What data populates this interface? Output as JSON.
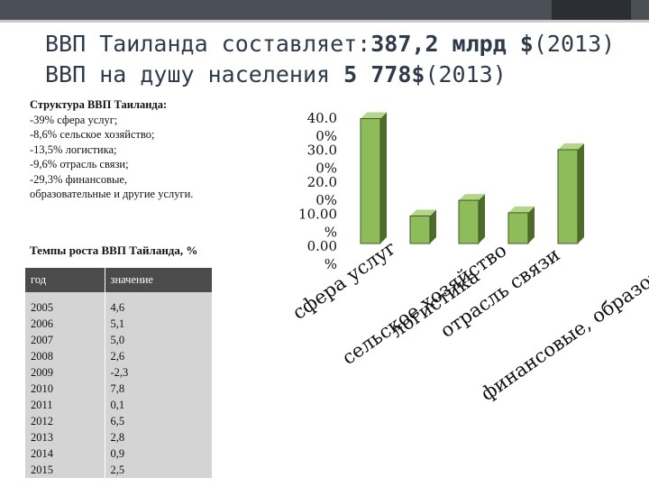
{
  "slide": {
    "title_line1_prefix": "ВВП Таиланда составляет:",
    "title_line1_value": "387,2 млрд $",
    "title_line1_suffix": "(2013)",
    "title_line2_prefix": "ВВП на душу населения ",
    "title_line2_value": "5 778$",
    "title_line2_suffix": "(2013)"
  },
  "structure": {
    "title": "Структура ВВП Таиланда:",
    "lines": [
      "-39% сфера услуг;",
      "-8,6% сельское хозяйство;",
      "-13,5% логистика;",
      "-9,6% отрасль связи;",
      "-29,3% финансовые,",
      "образовательные и другие услуги."
    ]
  },
  "growth": {
    "title": "Темпы роста ВВП Тайланда, %",
    "headers": [
      "год",
      "значение"
    ],
    "rows": [
      [
        "2005",
        "4,6"
      ],
      [
        "2006",
        "5,1"
      ],
      [
        "2007",
        "5,0"
      ],
      [
        "2008",
        "2,6"
      ],
      [
        "2009",
        "-2,3"
      ],
      [
        "2010",
        "7,8"
      ],
      [
        "2011",
        "0,1"
      ],
      [
        "2012",
        "6,5"
      ],
      [
        "2013",
        "2,8"
      ],
      [
        "2014",
        "0,9"
      ],
      [
        "2015",
        "2,5"
      ]
    ]
  },
  "chart_data": {
    "type": "bar",
    "categories": [
      "сфера услуг",
      "сельское хозяйство",
      "логистика",
      "отрасль связи",
      "финансовые, образовательные и др.услуги"
    ],
    "values": [
      39,
      8.6,
      13.5,
      9.6,
      29.3
    ],
    "ylim": [
      0,
      40
    ],
    "y_tick_labels": [
      "0.00 %",
      "10.00 %",
      "20.0 0%",
      "30.0 0%",
      "40.0 0%"
    ],
    "colors": {
      "bar_front": "#8fbc5a",
      "bar_side": "#4d6b2a",
      "bar_top": "#b5d68a",
      "bar_edge": "#3e5a22"
    },
    "grid": false,
    "legend": "none"
  }
}
